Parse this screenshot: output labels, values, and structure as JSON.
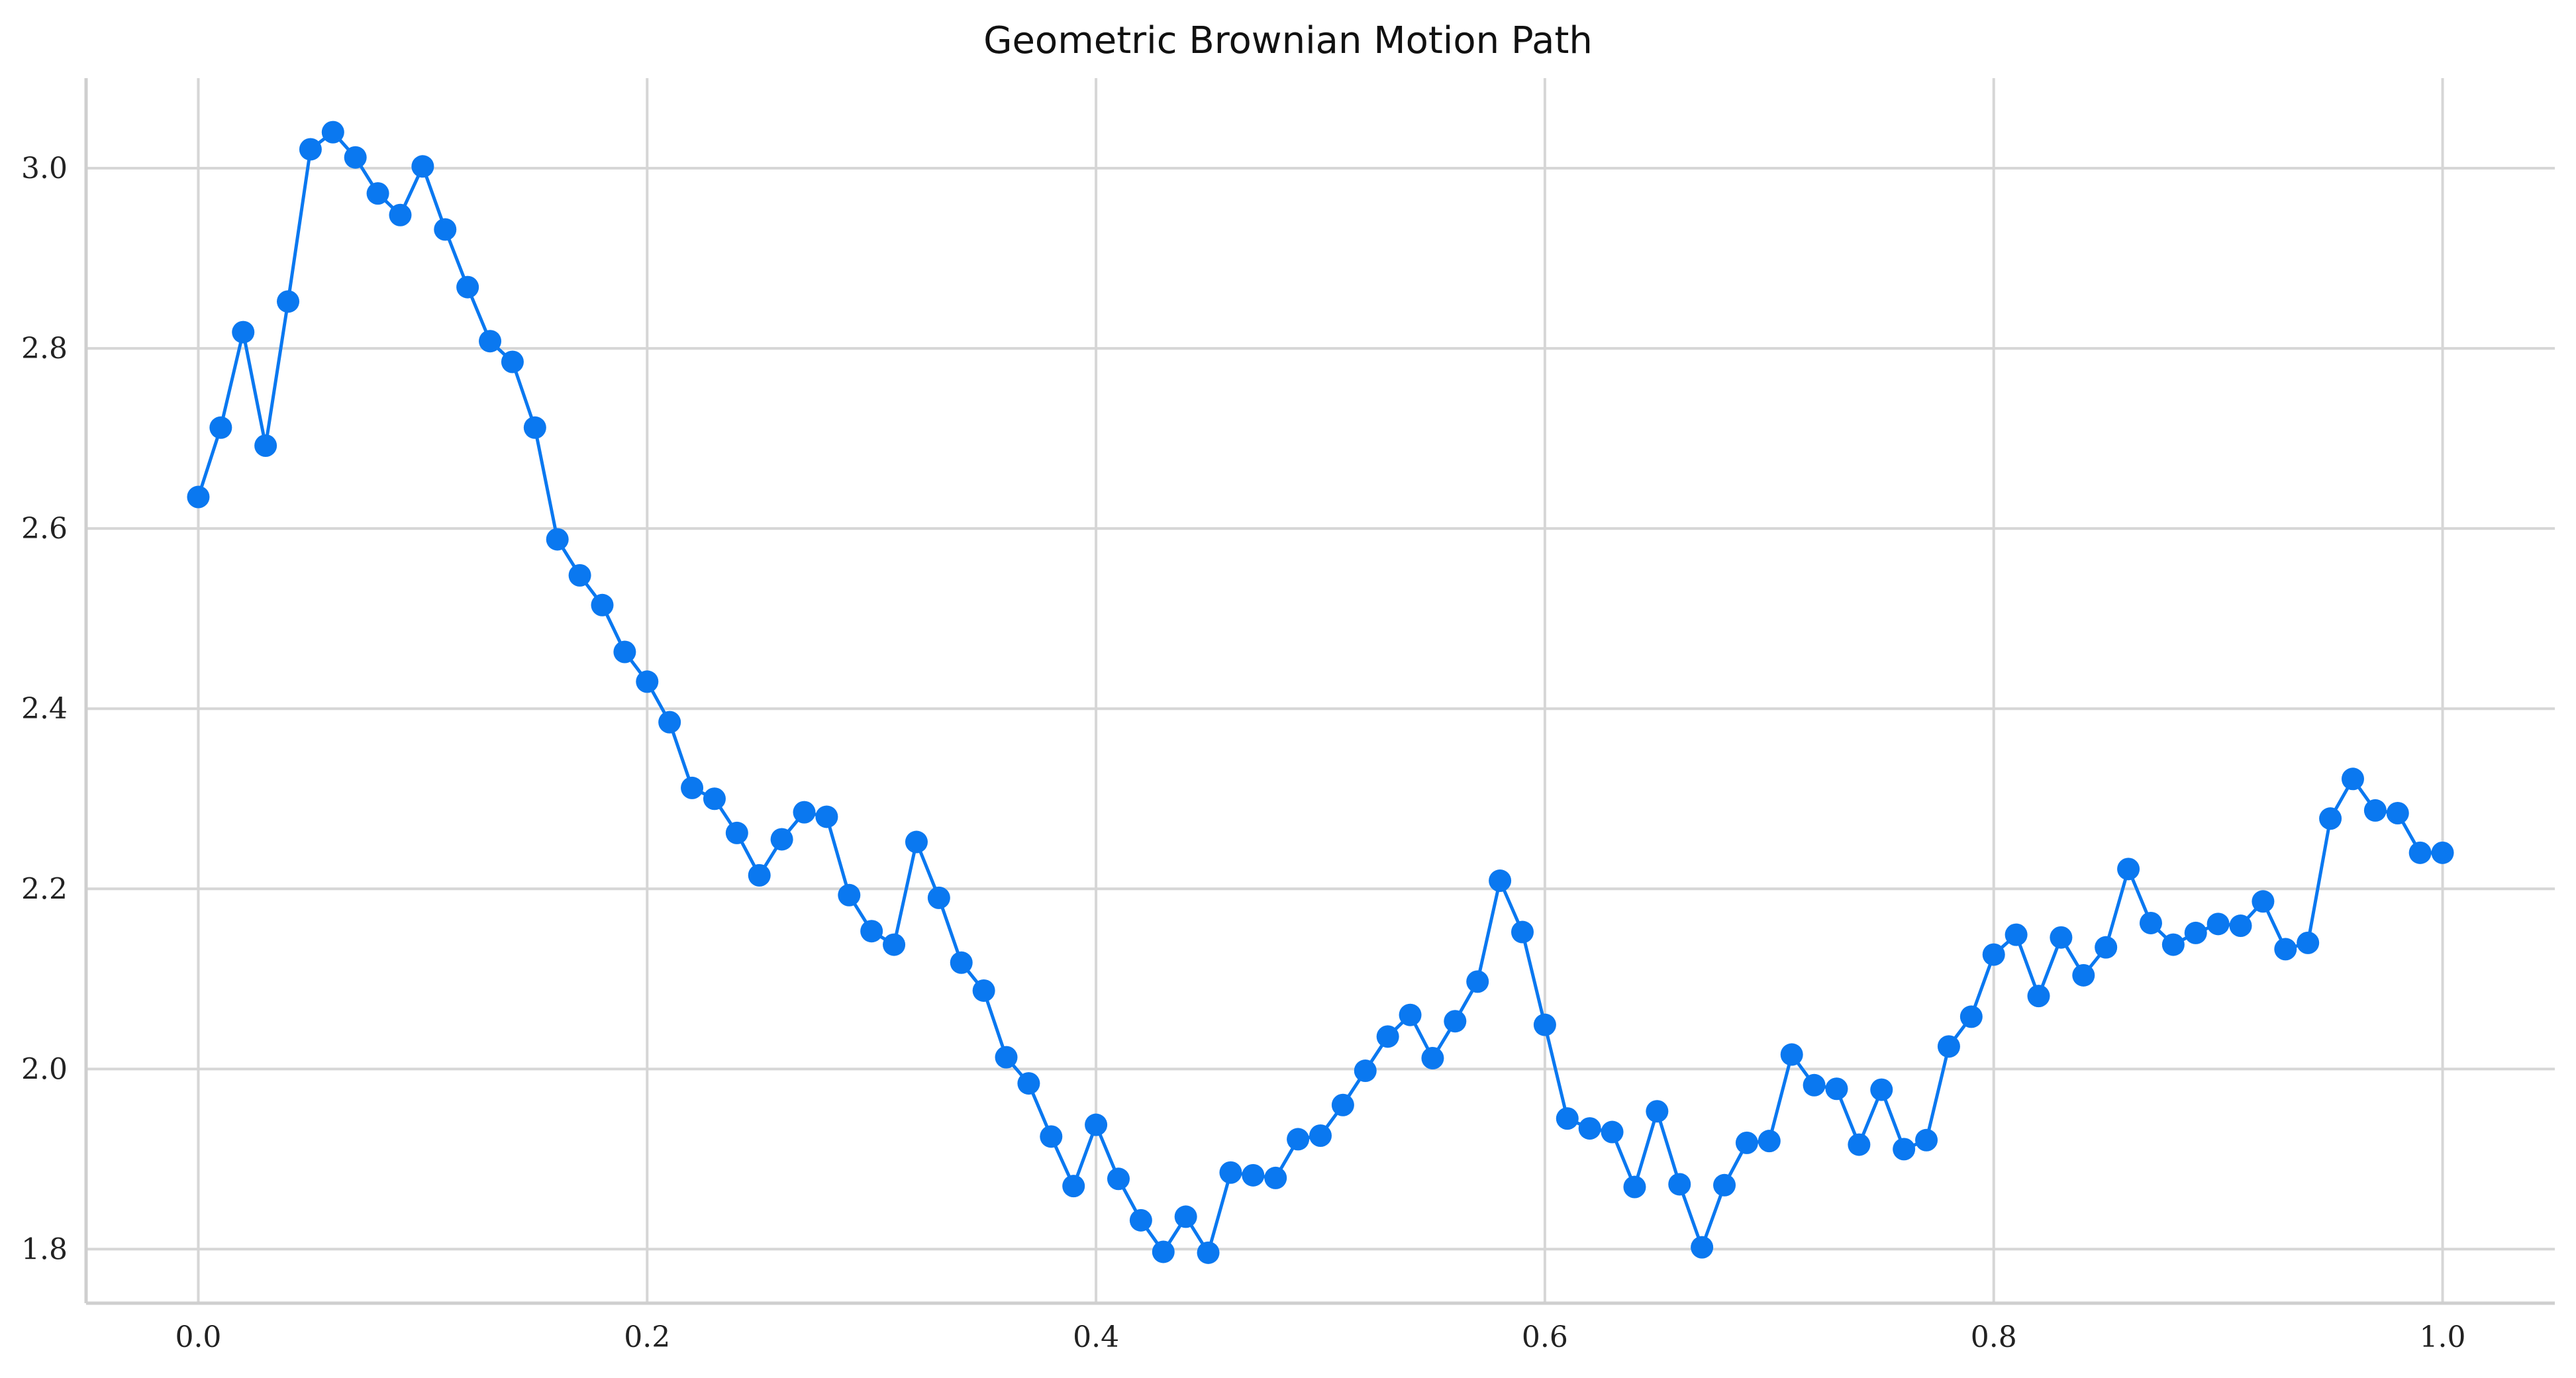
{
  "chart_data": {
    "type": "line",
    "title": "Geometric Brownian Motion Path",
    "xlabel": "",
    "ylabel": "",
    "xlim": [
      -0.05,
      1.05
    ],
    "ylim": [
      1.74,
      3.1
    ],
    "x_ticks": [
      "0.0",
      "0.2",
      "0.4",
      "0.6",
      "0.8",
      "1.0"
    ],
    "y_ticks": [
      "1.8",
      "2.0",
      "2.2",
      "2.4",
      "2.6",
      "2.8",
      "3.0"
    ],
    "grid": true,
    "markers": true,
    "series": [
      {
        "color": "#0a78f0",
        "x": [
          0.0,
          0.01,
          0.02,
          0.03,
          0.04,
          0.05,
          0.06,
          0.07,
          0.08,
          0.09,
          0.1,
          0.11,
          0.12,
          0.13,
          0.14,
          0.15,
          0.16,
          0.17,
          0.18,
          0.19,
          0.2,
          0.21,
          0.22,
          0.23,
          0.24,
          0.25,
          0.26,
          0.27,
          0.28,
          0.29,
          0.3,
          0.31,
          0.32,
          0.33,
          0.34,
          0.35,
          0.36,
          0.37,
          0.38,
          0.39,
          0.4,
          0.41,
          0.42,
          0.43,
          0.44,
          0.45,
          0.46,
          0.47,
          0.48,
          0.49,
          0.5,
          0.51,
          0.52,
          0.53,
          0.54,
          0.55,
          0.56,
          0.57,
          0.58,
          0.59,
          0.6,
          0.61,
          0.62,
          0.63,
          0.64,
          0.65,
          0.66,
          0.67,
          0.68,
          0.69,
          0.7,
          0.71,
          0.72,
          0.73,
          0.74,
          0.75,
          0.76,
          0.77,
          0.78,
          0.79,
          0.8,
          0.81,
          0.82,
          0.83,
          0.84,
          0.85,
          0.86,
          0.87,
          0.88,
          0.89,
          0.9,
          0.91,
          0.92,
          0.93,
          0.94,
          0.95,
          0.96,
          0.97,
          0.98,
          0.99,
          1.0
        ],
        "y": [
          2.635,
          2.712,
          2.818,
          2.692,
          2.852,
          3.021,
          3.04,
          3.012,
          2.972,
          2.948,
          3.002,
          2.932,
          2.868,
          2.808,
          2.785,
          2.712,
          2.588,
          2.548,
          2.515,
          2.463,
          2.43,
          2.385,
          2.312,
          2.3,
          2.262,
          2.215,
          2.255,
          2.285,
          2.28,
          2.193,
          2.153,
          2.138,
          2.252,
          2.19,
          2.118,
          2.087,
          2.013,
          1.984,
          1.925,
          1.87,
          1.938,
          1.878,
          1.832,
          1.797,
          1.836,
          1.796,
          1.885,
          1.882,
          1.879,
          1.922,
          1.926,
          1.96,
          1.998,
          2.036,
          2.06,
          2.012,
          2.053,
          2.097,
          2.209,
          2.152,
          2.049,
          1.945,
          1.934,
          1.93,
          1.869,
          1.953,
          1.872,
          1.802,
          1.871,
          1.918,
          1.92,
          2.016,
          1.982,
          1.978,
          1.916,
          1.977,
          1.911,
          1.921,
          2.025,
          2.058,
          2.127,
          2.149,
          2.081,
          2.146,
          2.104,
          2.135,
          2.222,
          2.162,
          2.138,
          2.151,
          2.161,
          2.159,
          2.186,
          2.133,
          2.14,
          2.278,
          2.322,
          2.287,
          2.284,
          2.24,
          2.24
        ]
      }
    ]
  }
}
